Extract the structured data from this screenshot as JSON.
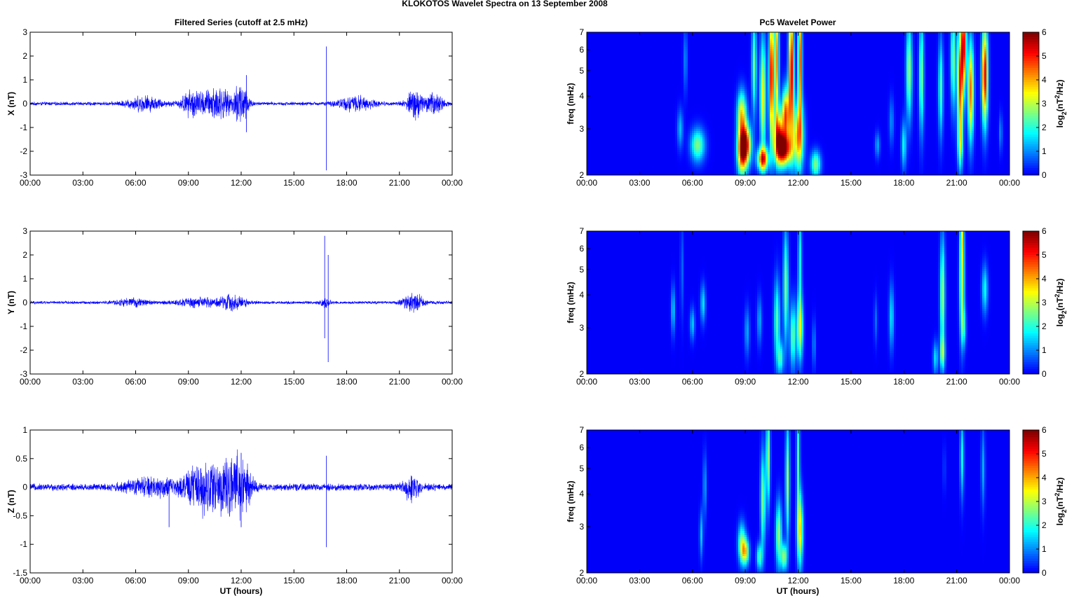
{
  "figure": {
    "title": "KLOKOTOS Wavelet Spectra on 13 September 2008",
    "left_column_title": "Filtered Series (cutoff at 2.5 mHz)",
    "right_column_title": "Pc5 Wavelet Power",
    "x_axis_label": "UT (hours)"
  },
  "chart_data": [
    {
      "type": "line",
      "component": "X",
      "ylabel": "X (nT)",
      "ylim": [
        -3,
        3
      ],
      "yticks": [
        "3",
        "2",
        "1",
        "0",
        "-1",
        "-2",
        "-3"
      ],
      "xticks": [
        "00:00",
        "03:00",
        "06:00",
        "09:00",
        "12:00",
        "15:00",
        "18:00",
        "21:00",
        "00:00"
      ],
      "x_range_hours": [
        0,
        24
      ],
      "line_color": "#0000ff",
      "noise_nT": 0.06,
      "activity_bursts": [
        {
          "center_h": 6.5,
          "width_h": 1.0,
          "amp_nT": 0.25
        },
        {
          "center_h": 9.2,
          "width_h": 0.6,
          "amp_nT": 0.45
        },
        {
          "center_h": 10.6,
          "width_h": 0.8,
          "amp_nT": 0.6
        },
        {
          "center_h": 12.0,
          "width_h": 0.4,
          "amp_nT": 0.8
        },
        {
          "center_h": 18.5,
          "width_h": 1.0,
          "amp_nT": 0.25
        },
        {
          "center_h": 21.9,
          "width_h": 0.5,
          "amp_nT": 0.5
        },
        {
          "center_h": 23.0,
          "width_h": 0.5,
          "amp_nT": 0.35
        }
      ],
      "spikes": [
        {
          "time_h": 16.85,
          "min_nT": -2.8,
          "max_nT": 2.4
        },
        {
          "time_h": 12.3,
          "min_nT": -1.2,
          "max_nT": 1.2
        }
      ]
    },
    {
      "type": "line",
      "component": "Y",
      "ylabel": "Y (nT)",
      "ylim": [
        -3,
        3
      ],
      "yticks": [
        "3",
        "2",
        "1",
        "0",
        "-1",
        "-2",
        "-3"
      ],
      "xticks": [
        "00:00",
        "03:00",
        "06:00",
        "09:00",
        "12:00",
        "15:00",
        "18:00",
        "21:00",
        "00:00"
      ],
      "x_range_hours": [
        0,
        24
      ],
      "line_color": "#0000ff",
      "noise_nT": 0.05,
      "activity_bursts": [
        {
          "center_h": 5.8,
          "width_h": 1.0,
          "amp_nT": 0.12
        },
        {
          "center_h": 9.5,
          "width_h": 1.2,
          "amp_nT": 0.15
        },
        {
          "center_h": 11.5,
          "width_h": 0.8,
          "amp_nT": 0.25
        },
        {
          "center_h": 16.8,
          "width_h": 0.3,
          "amp_nT": 0.15
        },
        {
          "center_h": 21.8,
          "width_h": 0.6,
          "amp_nT": 0.3
        }
      ],
      "spikes": [
        {
          "time_h": 16.75,
          "min_nT": -1.5,
          "max_nT": 2.8
        },
        {
          "time_h": 16.95,
          "min_nT": -2.5,
          "max_nT": 2.0
        }
      ]
    },
    {
      "type": "line",
      "component": "Z",
      "ylabel": "Z (nT)",
      "ylim": [
        -1.5,
        1
      ],
      "yticks": [
        "1",
        "0.5",
        "0",
        "-0.5",
        "-1",
        "-1.5"
      ],
      "xticks": [
        "00:00",
        "03:00",
        "06:00",
        "09:00",
        "12:00",
        "15:00",
        "18:00",
        "21:00",
        "00:00"
      ],
      "x_range_hours": [
        0,
        24
      ],
      "line_color": "#0000ff",
      "noise_nT": 0.05,
      "activity_bursts": [
        {
          "center_h": 7.0,
          "width_h": 1.5,
          "amp_nT": 0.12
        },
        {
          "center_h": 9.5,
          "width_h": 0.8,
          "amp_nT": 0.25
        },
        {
          "center_h": 10.8,
          "width_h": 1.0,
          "amp_nT": 0.35
        },
        {
          "center_h": 12.0,
          "width_h": 0.6,
          "amp_nT": 0.35
        },
        {
          "center_h": 21.7,
          "width_h": 0.5,
          "amp_nT": 0.18
        }
      ],
      "spikes": [
        {
          "time_h": 16.85,
          "min_nT": -1.05,
          "max_nT": 0.55
        },
        {
          "time_h": 7.9,
          "min_nT": -0.7,
          "max_nT": 0.1
        },
        {
          "time_h": 12.0,
          "min_nT": -0.7,
          "max_nT": 0.6
        }
      ]
    },
    {
      "type": "heatmap",
      "component": "X",
      "ylabel": "freq (mHz)",
      "y_scale": "log",
      "ylim_mHz": [
        2,
        7
      ],
      "yticks": [
        "7",
        "6",
        "5",
        "4",
        "3",
        "2"
      ],
      "xticks": [
        "00:00",
        "03:00",
        "06:00",
        "09:00",
        "12:00",
        "15:00",
        "18:00",
        "21:00",
        "00:00"
      ],
      "colorbar": {
        "label": "log2(nT2/Hz)",
        "range": [
          0,
          6
        ],
        "ticks": [
          "6",
          "5",
          "4",
          "3",
          "2",
          "1",
          "0"
        ],
        "colormap": "jet"
      },
      "blobs": [
        {
          "time_h": 5.3,
          "freq_mHz": 3.0,
          "dt_h": 0.12,
          "df": 0.12,
          "power": 1.3
        },
        {
          "time_h": 6.3,
          "freq_mHz": 2.6,
          "dt_h": 0.28,
          "df": 0.1,
          "power": 2.6
        },
        {
          "time_h": 5.6,
          "freq_mHz": 5.5,
          "dt_h": 0.08,
          "df": 0.2,
          "power": 1.0
        },
        {
          "time_h": 8.8,
          "freq_mHz": 2.4,
          "dt_h": 0.18,
          "df": 0.14,
          "power": 3.5
        },
        {
          "time_h": 9.0,
          "freq_mHz": 2.6,
          "dt_h": 0.22,
          "df": 0.12,
          "power": 5.4
        },
        {
          "time_h": 8.8,
          "freq_mHz": 3.4,
          "dt_h": 0.18,
          "df": 0.14,
          "power": 3.6
        },
        {
          "time_h": 10.0,
          "freq_mHz": 2.3,
          "dt_h": 0.22,
          "df": 0.07,
          "power": 4.8
        },
        {
          "time_h": 10.0,
          "freq_mHz": 4.0,
          "dt_h": 0.12,
          "df": 0.35,
          "power": 3.4
        },
        {
          "time_h": 9.5,
          "freq_mHz": 5.2,
          "dt_h": 0.1,
          "df": 0.3,
          "power": 2.4
        },
        {
          "time_h": 10.5,
          "freq_mHz": 4.8,
          "dt_h": 0.1,
          "df": 0.4,
          "power": 5.6
        },
        {
          "time_h": 10.8,
          "freq_mHz": 5.5,
          "dt_h": 0.08,
          "df": 0.4,
          "power": 4.2
        },
        {
          "time_h": 10.9,
          "freq_mHz": 2.8,
          "dt_h": 0.18,
          "df": 0.15,
          "power": 4.4
        },
        {
          "time_h": 11.2,
          "freq_mHz": 2.5,
          "dt_h": 0.28,
          "df": 0.1,
          "power": 5.5
        },
        {
          "time_h": 11.3,
          "freq_mHz": 3.4,
          "dt_h": 0.15,
          "df": 0.16,
          "power": 4.6
        },
        {
          "time_h": 11.6,
          "freq_mHz": 5.0,
          "dt_h": 0.1,
          "df": 0.4,
          "power": 5.6
        },
        {
          "time_h": 12.0,
          "freq_mHz": 2.8,
          "dt_h": 0.22,
          "df": 0.2,
          "power": 4.0
        },
        {
          "time_h": 12.1,
          "freq_mHz": 5.5,
          "dt_h": 0.08,
          "df": 0.4,
          "power": 4.6
        },
        {
          "time_h": 13.0,
          "freq_mHz": 2.2,
          "dt_h": 0.2,
          "df": 0.08,
          "power": 2.6
        },
        {
          "time_h": 16.5,
          "freq_mHz": 2.6,
          "dt_h": 0.1,
          "df": 0.08,
          "power": 1.2
        },
        {
          "time_h": 17.3,
          "freq_mHz": 3.2,
          "dt_h": 0.1,
          "df": 0.15,
          "power": 1.0
        },
        {
          "time_h": 18.0,
          "freq_mHz": 2.6,
          "dt_h": 0.1,
          "df": 0.15,
          "power": 1.8
        },
        {
          "time_h": 18.3,
          "freq_mHz": 5.0,
          "dt_h": 0.12,
          "df": 0.3,
          "power": 2.8
        },
        {
          "time_h": 19.0,
          "freq_mHz": 4.8,
          "dt_h": 0.1,
          "df": 0.35,
          "power": 2.6
        },
        {
          "time_h": 20.1,
          "freq_mHz": 4.3,
          "dt_h": 0.1,
          "df": 0.3,
          "power": 2.2
        },
        {
          "time_h": 20.8,
          "freq_mHz": 5.5,
          "dt_h": 0.1,
          "df": 0.3,
          "power": 2.6
        },
        {
          "time_h": 21.2,
          "freq_mHz": 4.5,
          "dt_h": 0.12,
          "df": 0.35,
          "power": 4.8
        },
        {
          "time_h": 21.4,
          "freq_mHz": 6.3,
          "dt_h": 0.1,
          "df": 0.25,
          "power": 5.0
        },
        {
          "time_h": 21.8,
          "freq_mHz": 4.2,
          "dt_h": 0.12,
          "df": 0.3,
          "power": 4.4
        },
        {
          "time_h": 22.6,
          "freq_mHz": 4.8,
          "dt_h": 0.12,
          "df": 0.3,
          "power": 5.4
        },
        {
          "time_h": 21.2,
          "freq_mHz": 2.6,
          "dt_h": 0.1,
          "df": 0.15,
          "power": 2.0
        },
        {
          "time_h": 23.5,
          "freq_mHz": 2.9,
          "dt_h": 0.07,
          "df": 0.12,
          "power": 1.0
        }
      ]
    },
    {
      "type": "heatmap",
      "component": "Y",
      "ylabel": "freq (mHz)",
      "y_scale": "log",
      "ylim_mHz": [
        2,
        7
      ],
      "yticks": [
        "7",
        "6",
        "5",
        "4",
        "3",
        "2"
      ],
      "xticks": [
        "00:00",
        "03:00",
        "06:00",
        "09:00",
        "12:00",
        "15:00",
        "18:00",
        "21:00",
        "00:00"
      ],
      "colorbar": {
        "label": "log2(nT2/Hz)",
        "range": [
          0,
          6
        ],
        "ticks": [
          "6",
          "5",
          "4",
          "3",
          "2",
          "1",
          "0"
        ],
        "colormap": "jet"
      },
      "blobs": [
        {
          "time_h": 4.9,
          "freq_mHz": 3.5,
          "dt_h": 0.08,
          "df": 0.15,
          "power": 1.5
        },
        {
          "time_h": 5.4,
          "freq_mHz": 5.0,
          "dt_h": 0.06,
          "df": 0.3,
          "power": 0.8
        },
        {
          "time_h": 6.0,
          "freq_mHz": 3.1,
          "dt_h": 0.1,
          "df": 0.1,
          "power": 1.4
        },
        {
          "time_h": 6.6,
          "freq_mHz": 3.7,
          "dt_h": 0.1,
          "df": 0.12,
          "power": 1.6
        },
        {
          "time_h": 9.1,
          "freq_mHz": 2.9,
          "dt_h": 0.1,
          "df": 0.15,
          "power": 1.2
        },
        {
          "time_h": 9.8,
          "freq_mHz": 3.2,
          "dt_h": 0.1,
          "df": 0.15,
          "power": 1.2
        },
        {
          "time_h": 10.8,
          "freq_mHz": 3.2,
          "dt_h": 0.12,
          "df": 0.25,
          "power": 2.3
        },
        {
          "time_h": 11.0,
          "freq_mHz": 2.3,
          "dt_h": 0.12,
          "df": 0.1,
          "power": 2.0
        },
        {
          "time_h": 11.3,
          "freq_mHz": 4.3,
          "dt_h": 0.1,
          "df": 0.35,
          "power": 2.6
        },
        {
          "time_h": 11.7,
          "freq_mHz": 2.8,
          "dt_h": 0.12,
          "df": 0.2,
          "power": 2.4
        },
        {
          "time_h": 12.1,
          "freq_mHz": 3.0,
          "dt_h": 0.12,
          "df": 0.2,
          "power": 3.2
        },
        {
          "time_h": 12.1,
          "freq_mHz": 5.5,
          "dt_h": 0.08,
          "df": 0.3,
          "power": 1.8
        },
        {
          "time_h": 12.9,
          "freq_mHz": 2.6,
          "dt_h": 0.07,
          "df": 0.15,
          "power": 1.0
        },
        {
          "time_h": 16.4,
          "freq_mHz": 3.2,
          "dt_h": 0.07,
          "df": 0.15,
          "power": 0.8
        },
        {
          "time_h": 17.3,
          "freq_mHz": 3.3,
          "dt_h": 0.1,
          "df": 0.2,
          "power": 1.6
        },
        {
          "time_h": 19.8,
          "freq_mHz": 2.3,
          "dt_h": 0.1,
          "df": 0.1,
          "power": 1.6
        },
        {
          "time_h": 20.2,
          "freq_mHz": 2.4,
          "dt_h": 0.1,
          "df": 0.1,
          "power": 2.2
        },
        {
          "time_h": 20.2,
          "freq_mHz": 4.0,
          "dt_h": 0.1,
          "df": 0.35,
          "power": 2.8
        },
        {
          "time_h": 21.3,
          "freq_mHz": 4.5,
          "dt_h": 0.1,
          "df": 0.35,
          "power": 3.0
        },
        {
          "time_h": 21.3,
          "freq_mHz": 6.7,
          "dt_h": 0.07,
          "df": 0.15,
          "power": 2.0
        },
        {
          "time_h": 21.4,
          "freq_mHz": 3.0,
          "dt_h": 0.1,
          "df": 0.12,
          "power": 1.4
        },
        {
          "time_h": 22.6,
          "freq_mHz": 4.2,
          "dt_h": 0.12,
          "df": 0.15,
          "power": 1.8
        }
      ]
    },
    {
      "type": "heatmap",
      "component": "Z",
      "ylabel": "freq (mHz)",
      "y_scale": "log",
      "ylim_mHz": [
        2,
        7
      ],
      "yticks": [
        "7",
        "6",
        "5",
        "4",
        "3",
        "2"
      ],
      "xticks": [
        "00:00",
        "03:00",
        "06:00",
        "09:00",
        "12:00",
        "15:00",
        "18:00",
        "21:00",
        "00:00"
      ],
      "colorbar": {
        "label": "log2(nT2/Hz)",
        "range": [
          0,
          6
        ],
        "ticks": [
          "6",
          "5",
          "4",
          "3",
          "2",
          "1",
          "0"
        ],
        "colormap": "jet"
      },
      "blobs": [
        {
          "time_h": 6.5,
          "freq_mHz": 2.8,
          "dt_h": 0.07,
          "df": 0.15,
          "power": 1.4
        },
        {
          "time_h": 6.7,
          "freq_mHz": 4.3,
          "dt_h": 0.07,
          "df": 0.2,
          "power": 1.2
        },
        {
          "time_h": 8.8,
          "freq_mHz": 2.6,
          "dt_h": 0.15,
          "df": 0.12,
          "power": 2.6
        },
        {
          "time_h": 9.0,
          "freq_mHz": 2.4,
          "dt_h": 0.15,
          "df": 0.08,
          "power": 3.2
        },
        {
          "time_h": 9.8,
          "freq_mHz": 2.3,
          "dt_h": 0.12,
          "df": 0.08,
          "power": 2.2
        },
        {
          "time_h": 10.0,
          "freq_mHz": 3.8,
          "dt_h": 0.1,
          "df": 0.3,
          "power": 2.6
        },
        {
          "time_h": 10.3,
          "freq_mHz": 5.5,
          "dt_h": 0.08,
          "df": 0.3,
          "power": 2.8
        },
        {
          "time_h": 10.9,
          "freq_mHz": 2.8,
          "dt_h": 0.12,
          "df": 0.2,
          "power": 2.8
        },
        {
          "time_h": 11.2,
          "freq_mHz": 2.3,
          "dt_h": 0.12,
          "df": 0.08,
          "power": 2.8
        },
        {
          "time_h": 11.4,
          "freq_mHz": 4.5,
          "dt_h": 0.08,
          "df": 0.35,
          "power": 2.8
        },
        {
          "time_h": 12.1,
          "freq_mHz": 2.9,
          "dt_h": 0.12,
          "df": 0.22,
          "power": 3.6
        },
        {
          "time_h": 12.0,
          "freq_mHz": 5.5,
          "dt_h": 0.07,
          "df": 0.35,
          "power": 2.2
        },
        {
          "time_h": 21.3,
          "freq_mHz": 5.5,
          "dt_h": 0.08,
          "df": 0.25,
          "power": 1.8
        },
        {
          "time_h": 22.5,
          "freq_mHz": 5.0,
          "dt_h": 0.08,
          "df": 0.25,
          "power": 1.2
        },
        {
          "time_h": 20.3,
          "freq_mHz": 5.0,
          "dt_h": 0.05,
          "df": 0.15,
          "power": 0.6
        }
      ]
    }
  ]
}
